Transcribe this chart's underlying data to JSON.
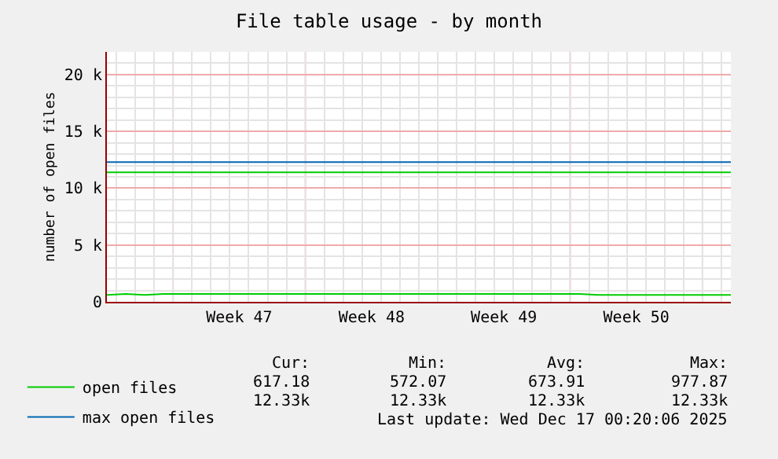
{
  "chart_data": {
    "type": "line",
    "title": "File table usage - by month",
    "ylabel": "number of open files",
    "categories": [
      null,
      null,
      null,
      null,
      null,
      null,
      null,
      "Week 47",
      null,
      null,
      null,
      null,
      null,
      null,
      "Week 48",
      null,
      null,
      null,
      null,
      null,
      null,
      "Week 49",
      null,
      null,
      null,
      null,
      null,
      null,
      "Week 50",
      null,
      null,
      null,
      null,
      null
    ],
    "ylim": [
      0,
      22000
    ],
    "yticks": [
      {
        "value": 0,
        "label": "0"
      },
      {
        "value": 5000,
        "label": "5 k"
      },
      {
        "value": 10000,
        "label": "10 k"
      },
      {
        "value": 15000,
        "label": "15 k"
      },
      {
        "value": 20000,
        "label": "20 k"
      }
    ],
    "grid": true,
    "legend": "bottom left",
    "marker": "none",
    "line_style": "solid",
    "series": [
      {
        "name": "open files",
        "color": "#00cc00",
        "values": [
          600,
          700,
          600,
          700,
          700,
          700,
          700,
          700,
          700,
          700,
          700,
          700,
          700,
          700,
          700,
          700,
          700,
          700,
          700,
          700,
          700,
          700,
          700,
          700,
          700,
          700,
          600,
          600,
          600,
          600,
          600,
          600,
          600,
          600
        ]
      },
      {
        "name": "max open files",
        "color": "#0066b3",
        "values": [
          12300,
          12300,
          12300,
          12300,
          12300,
          12300,
          12300,
          12300,
          12300,
          12300,
          12300,
          12300,
          12300,
          12300,
          12300,
          12300,
          12300,
          12300,
          12300,
          12300,
          12300,
          12300,
          12300,
          12300,
          12300,
          12300,
          12300,
          12300,
          12300,
          12300,
          12300,
          12300,
          12300,
          12300
        ]
      }
    ],
    "ref_lines": [
      {
        "axis": "y",
        "value": 11400,
        "label": null,
        "color": "#00cc00"
      }
    ],
    "annotations": [
      "Cur:",
      "Min:",
      "Avg:",
      "Max:",
      "617.18",
      "572.07",
      "673.91",
      "977.87",
      "12.33k",
      "12.33k",
      "12.33k",
      "12.33k",
      "Last update: Wed Dec 17 00:20:06 2025"
    ]
  }
}
